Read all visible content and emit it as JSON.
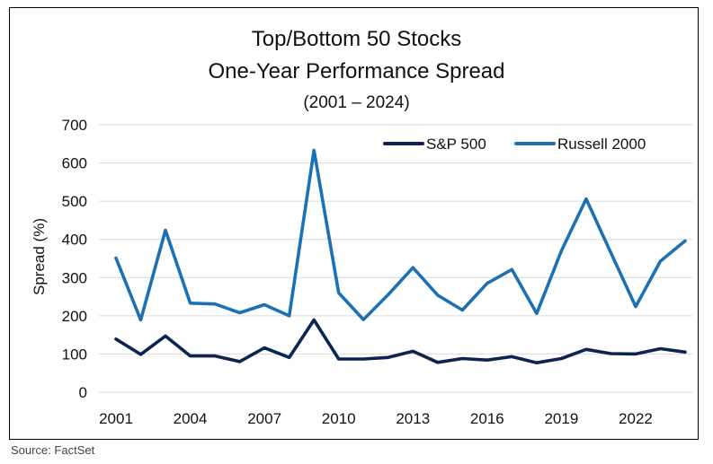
{
  "chart_data": {
    "type": "line",
    "title_line1": "Top/Bottom 50 Stocks",
    "title_line2": "One-Year Performance Spread",
    "subtitle": "(2001 – 2024)",
    "xlabel": "",
    "ylabel": "Spread (%)",
    "ylim": [
      0,
      700
    ],
    "yticks": [
      0,
      100,
      200,
      300,
      400,
      500,
      600,
      700
    ],
    "x": [
      2001,
      2002,
      2003,
      2004,
      2005,
      2006,
      2007,
      2008,
      2009,
      2010,
      2011,
      2012,
      2013,
      2014,
      2015,
      2016,
      2017,
      2018,
      2019,
      2020,
      2021,
      2022,
      2023,
      2024
    ],
    "xticks": [
      2001,
      2004,
      2007,
      2010,
      2013,
      2016,
      2019,
      2022
    ],
    "grid": true,
    "legend_position": "top-right",
    "series": [
      {
        "name": "S&P 500",
        "color": "#0d2451",
        "values": [
          139,
          99,
          147,
          95,
          95,
          80,
          116,
          91,
          189,
          87,
          87,
          91,
          107,
          78,
          88,
          84,
          93,
          77,
          88,
          112,
          101,
          100,
          114,
          105
        ]
      },
      {
        "name": "Russell 2000",
        "color": "#1d70b1",
        "values": [
          351,
          189,
          424,
          233,
          231,
          208,
          229,
          200,
          633,
          260,
          190,
          255,
          326,
          254,
          215,
          285,
          321,
          206,
          370,
          506,
          365,
          224,
          343,
          396
        ]
      }
    ]
  },
  "footer": {
    "source": "Source: FactSet"
  }
}
